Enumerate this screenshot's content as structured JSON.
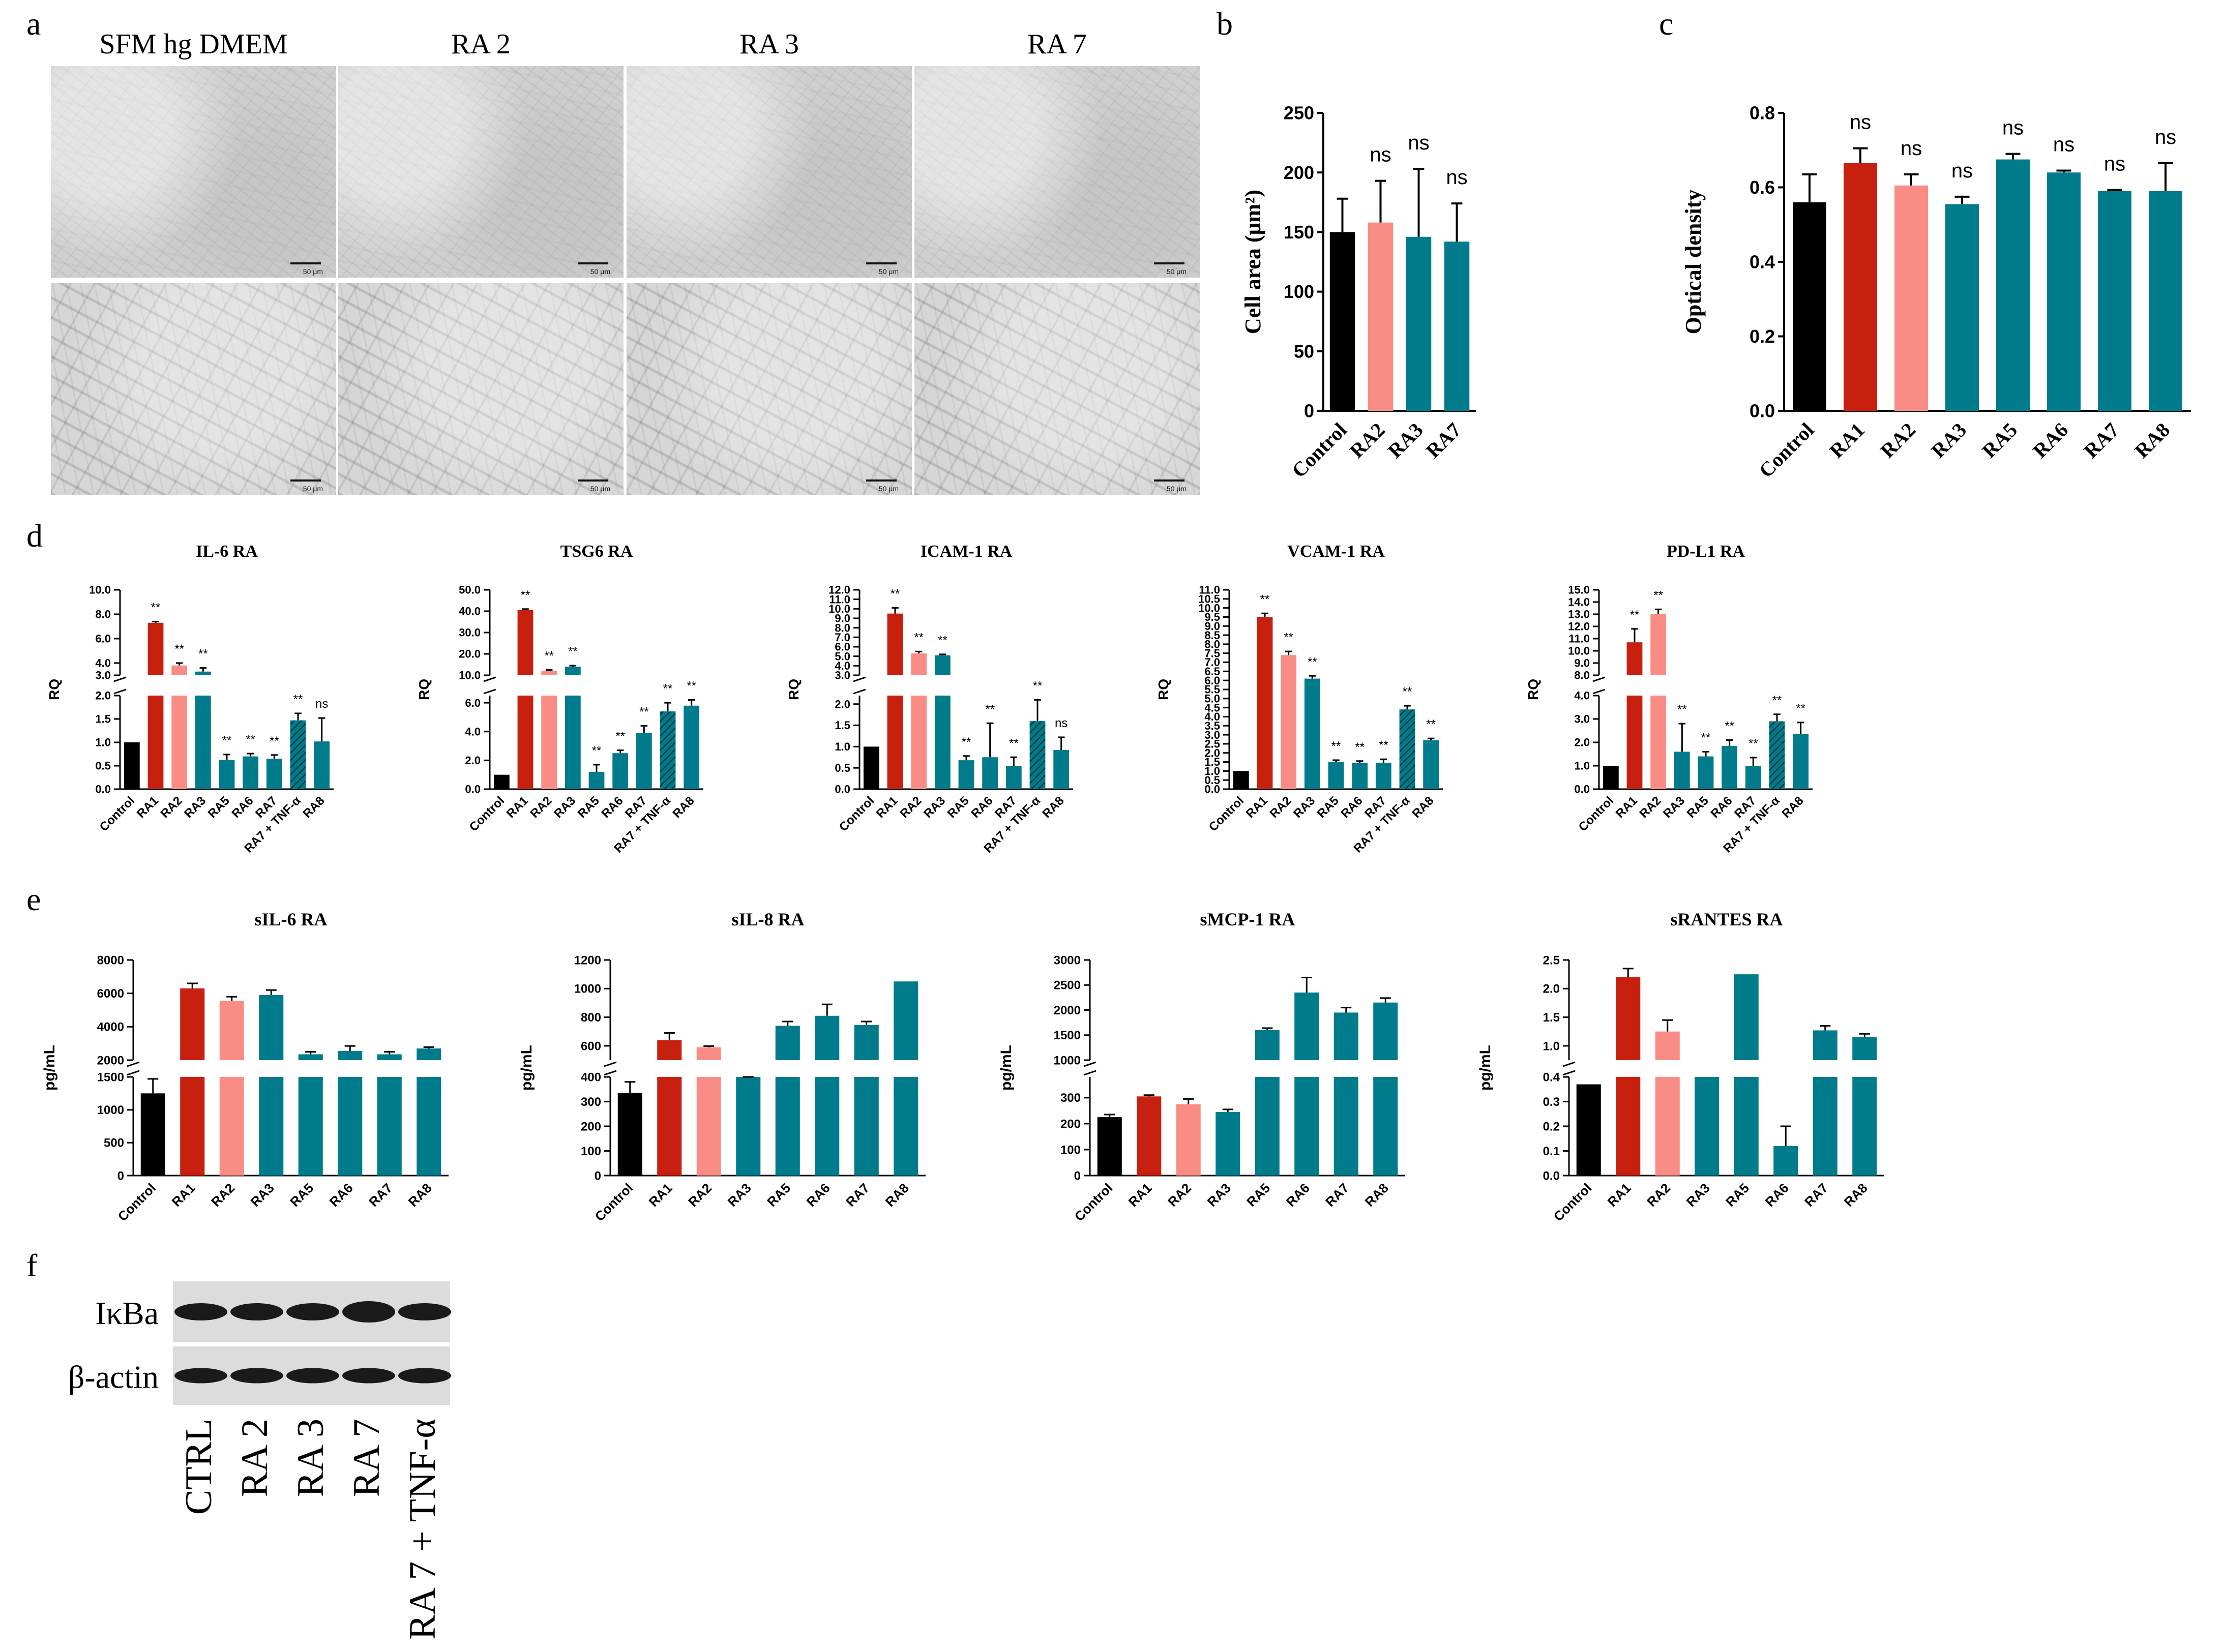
{
  "panel_labels": {
    "a": "a",
    "b": "b",
    "c": "c",
    "d": "d",
    "e": "e",
    "f": "f"
  },
  "colors": {
    "black": "#000000",
    "red": "#c8200e",
    "pink": "#f98d86",
    "teal": "#007b8b"
  },
  "micro": {
    "columns": [
      "SFM hg DMEM",
      "RA 2",
      "RA 3",
      "RA 7"
    ],
    "scalebar": "50 μm"
  },
  "chart_data": [
    {
      "id": "b",
      "type": "bar",
      "ylabel": "Cell area (μm²)",
      "ylim": [
        0,
        250
      ],
      "yticks": [
        0,
        50,
        100,
        150,
        200,
        250
      ],
      "categories": [
        "Control",
        "RA2",
        "RA3",
        "RA7"
      ],
      "values": [
        150,
        158,
        146,
        142
      ],
      "errors": [
        28,
        35,
        57,
        32
      ],
      "colors": [
        "black",
        "pink",
        "teal",
        "teal"
      ],
      "annotations": [
        "",
        "ns",
        "ns",
        "ns"
      ]
    },
    {
      "id": "c",
      "type": "bar",
      "ylabel": "Optical density",
      "ylim": [
        0,
        0.8
      ],
      "yticks": [
        "0.0",
        "0.2",
        "0.4",
        "0.6",
        "0.8"
      ],
      "categories": [
        "Control",
        "RA1",
        "RA2",
        "RA3",
        "RA5",
        "RA6",
        "RA7",
        "RA8"
      ],
      "values": [
        0.56,
        0.665,
        0.605,
        0.555,
        0.675,
        0.64,
        0.59,
        0.59
      ],
      "errors": [
        0.075,
        0.04,
        0.03,
        0.02,
        0.015,
        0.005,
        0.003,
        0.075
      ],
      "colors": [
        "black",
        "red",
        "pink",
        "teal",
        "teal",
        "teal",
        "teal",
        "teal"
      ],
      "annotations": [
        "",
        "ns",
        "ns",
        "ns",
        "ns",
        "ns",
        "ns",
        "ns"
      ]
    },
    {
      "id": "d1",
      "type": "bar",
      "title": "IL-6 RA",
      "ylabel": "RQ",
      "categories": [
        "Control",
        "RA1",
        "RA2",
        "RA3",
        "RA5",
        "RA6",
        "RA7",
        "RA7 + TNF-α",
        "RA8"
      ],
      "values": [
        1.0,
        7.3,
        3.8,
        3.3,
        0.62,
        0.7,
        0.65,
        1.47,
        1.02
      ],
      "errors": [
        0,
        0.1,
        0.2,
        0.3,
        0.12,
        0.06,
        0.08,
        0.15,
        0.5
      ],
      "colors": [
        "black",
        "red",
        "pink",
        "teal",
        "teal",
        "teal",
        "teal",
        "hatch",
        "teal"
      ],
      "annotations": [
        "",
        "**",
        "**",
        "**",
        "**",
        "**",
        "**",
        "**",
        "ns"
      ],
      "lower_ticks": [
        "0.0",
        "0.5",
        "1.0",
        "1.5",
        "2.0"
      ],
      "upper_ticks": [
        "3.0",
        "4.0",
        "6.0",
        "8.0",
        "10.0"
      ],
      "lower_max": 2.0,
      "upper_min": 3.0,
      "upper_max": 10.0
    },
    {
      "id": "d2",
      "type": "bar",
      "title": "TSG6 RA",
      "ylabel": "RQ",
      "categories": [
        "Control",
        "RA1",
        "RA2",
        "RA3",
        "RA5",
        "RA6",
        "RA7",
        "RA7 + TNF-α",
        "RA8"
      ],
      "values": [
        1.0,
        40.5,
        12.0,
        14.0,
        1.2,
        2.5,
        3.9,
        5.4,
        5.8
      ],
      "errors": [
        0,
        0.5,
        0.5,
        0.5,
        0.5,
        0.2,
        0.5,
        0.6,
        0.4
      ],
      "colors": [
        "black",
        "red",
        "pink",
        "teal",
        "teal",
        "teal",
        "teal",
        "hatch",
        "teal"
      ],
      "annotations": [
        "",
        "**",
        "**",
        "**",
        "**",
        "**",
        "**",
        "**",
        "**"
      ],
      "lower_ticks": [
        "0.0",
        "2.0",
        "4.0",
        "6.0"
      ],
      "upper_ticks": [
        "10.0",
        "20.0",
        "30.0",
        "40.0",
        "50.0"
      ],
      "lower_max": 6.5,
      "upper_min": 10.0,
      "upper_max": 50.0
    },
    {
      "id": "d3",
      "type": "bar",
      "title": "ICAM-1 RA",
      "ylabel": "RQ",
      "categories": [
        "Control",
        "RA1",
        "RA2",
        "RA3",
        "RA5",
        "RA6",
        "RA7",
        "RA7 + TNF-α",
        "RA8"
      ],
      "values": [
        1.0,
        9.5,
        5.3,
        5.1,
        0.68,
        0.75,
        0.55,
        1.6,
        0.92
      ],
      "errors": [
        0,
        0.6,
        0.2,
        0.1,
        0.1,
        0.8,
        0.2,
        0.5,
        0.3
      ],
      "colors": [
        "black",
        "red",
        "pink",
        "teal",
        "teal",
        "teal",
        "teal",
        "hatch",
        "teal"
      ],
      "annotations": [
        "",
        "**",
        "**",
        "**",
        "**",
        "**",
        "**",
        "**",
        "ns"
      ],
      "lower_ticks": [
        "0.0",
        "0.5",
        "1.0",
        "1.5",
        "2.0"
      ],
      "upper_ticks": [
        "3.0",
        "4.0",
        "5.0",
        "6.0",
        "7.0",
        "8.0",
        "9.0",
        "10.0",
        "11.0",
        "12.0"
      ],
      "lower_max": 2.2,
      "upper_min": 3.0,
      "upper_max": 12.0
    },
    {
      "id": "d4",
      "type": "bar",
      "title": "VCAM-1 RA",
      "ylabel": "RQ",
      "categories": [
        "Control",
        "RA1",
        "RA2",
        "RA3",
        "RA5",
        "RA6",
        "RA7",
        "RA7 + TNF-α",
        "RA8"
      ],
      "values": [
        1.0,
        9.5,
        7.4,
        6.1,
        1.5,
        1.45,
        1.45,
        4.4,
        2.7
      ],
      "errors": [
        0,
        0.2,
        0.2,
        0.15,
        0.1,
        0.1,
        0.2,
        0.2,
        0.1
      ],
      "colors": [
        "black",
        "red",
        "pink",
        "teal",
        "teal",
        "teal",
        "teal",
        "hatch",
        "teal"
      ],
      "annotations": [
        "",
        "**",
        "**",
        "**",
        "**",
        "**",
        "**",
        "**",
        "**"
      ],
      "ticks": [
        "0.0",
        "0.5",
        "1.0",
        "1.5",
        "2.0",
        "2.5",
        "3.0",
        "3.5",
        "4.0",
        "4.5",
        "5.0",
        "5.5",
        "6.0",
        "6.5",
        "7.0",
        "7.5",
        "8.0",
        "8.5",
        "9.0",
        "9.5",
        "10.0",
        "10.5",
        "11.0"
      ],
      "ymax": 11.0
    },
    {
      "id": "d5",
      "type": "bar",
      "title": "PD-L1 RA",
      "ylabel": "RQ",
      "categories": [
        "Control",
        "RA1",
        "RA2",
        "RA3",
        "RA5",
        "RA6",
        "RA7",
        "RA7 + TNF-α",
        "RA8"
      ],
      "values": [
        1.0,
        10.7,
        13.0,
        1.6,
        1.4,
        1.85,
        1.0,
        2.9,
        2.35
      ],
      "errors": [
        0,
        1.1,
        0.4,
        1.2,
        0.2,
        0.25,
        0.35,
        0.3,
        0.5
      ],
      "colors": [
        "black",
        "red",
        "pink",
        "teal",
        "teal",
        "teal",
        "teal",
        "hatch",
        "teal"
      ],
      "annotations": [
        "",
        "**",
        "**",
        "**",
        "**",
        "**",
        "**",
        "**",
        "**"
      ],
      "lower_ticks": [
        "0.0",
        "1.0",
        "2.0",
        "3.0",
        "4.0"
      ],
      "upper_ticks": [
        "8.0",
        "9.0",
        "10.0",
        "11.0",
        "12.0",
        "13.0",
        "14.0",
        "15.0"
      ],
      "lower_max": 4.0,
      "upper_min": 8.0,
      "upper_max": 15.0
    },
    {
      "id": "e1",
      "type": "bar",
      "title": "sIL-6 RA",
      "ylabel": "pg/mL",
      "categories": [
        "Control",
        "RA1",
        "RA2",
        "RA3",
        "RA5",
        "RA6",
        "RA7",
        "RA8"
      ],
      "values": [
        1250,
        6300,
        5550,
        5900,
        2350,
        2550,
        2350,
        2700
      ],
      "errors": [
        220,
        300,
        250,
        300,
        150,
        300,
        150,
        80
      ],
      "colors": [
        "black",
        "red",
        "pink",
        "teal",
        "teal",
        "teal",
        "teal",
        "teal"
      ],
      "lower_ticks": [
        "0",
        "500",
        "1000",
        "1500"
      ],
      "upper_ticks": [
        "2000",
        "4000",
        "6000",
        "8000"
      ],
      "lower_max": 1500,
      "upper_min": 2000,
      "upper_max": 8000
    },
    {
      "id": "e2",
      "type": "bar",
      "title": "sIL-8 RA",
      "ylabel": "pg/mL",
      "categories": [
        "Control",
        "RA1",
        "RA2",
        "RA3",
        "RA5",
        "RA6",
        "RA7",
        "RA8"
      ],
      "values": [
        335,
        640,
        590,
        480,
        740,
        810,
        745,
        1050
      ],
      "errors": [
        45,
        50,
        8,
        8,
        30,
        80,
        25,
        0
      ],
      "colors": [
        "black",
        "red",
        "pink",
        "teal",
        "teal",
        "teal",
        "teal",
        "teal"
      ],
      "lower_ticks": [
        "0",
        "100",
        "200",
        "300",
        "400"
      ],
      "upper_ticks": [
        "600",
        "800",
        "1000",
        "1200"
      ],
      "lower_max": 400,
      "upper_min": 500,
      "upper_max": 1200
    },
    {
      "id": "e3",
      "type": "bar",
      "title": "sMCP-1 RA",
      "ylabel": "pg/mL",
      "categories": [
        "Control",
        "RA1",
        "RA2",
        "RA3",
        "RA5",
        "RA6",
        "RA7",
        "RA8"
      ],
      "values": [
        225,
        305,
        275,
        245,
        1600,
        2350,
        1950,
        2150
      ],
      "errors": [
        10,
        5,
        20,
        10,
        40,
        300,
        100,
        90
      ],
      "colors": [
        "black",
        "red",
        "pink",
        "teal",
        "teal",
        "teal",
        "teal",
        "teal"
      ],
      "lower_ticks": [
        "0",
        "100",
        "200",
        "300"
      ],
      "upper_ticks": [
        "1000",
        "1500",
        "2000",
        "2500",
        "3000"
      ],
      "lower_max": 380,
      "upper_min": 1000,
      "upper_max": 3000
    },
    {
      "id": "e4",
      "type": "bar",
      "title": "sRANTES RA",
      "ylabel": "pg/mL",
      "categories": [
        "Control",
        "RA1",
        "RA2",
        "RA3",
        "RA5",
        "RA6",
        "RA7",
        "RA8"
      ],
      "values": [
        0.37,
        2.2,
        1.25,
        0.75,
        2.25,
        0.12,
        1.27,
        1.15
      ],
      "errors": [
        0,
        0.15,
        0.2,
        0,
        0,
        0.08,
        0.08,
        0.06
      ],
      "colors": [
        "black",
        "red",
        "pink",
        "teal",
        "teal",
        "teal",
        "teal",
        "teal"
      ],
      "lower_ticks": [
        "0.0",
        "0.1",
        "0.2",
        "0.3",
        "0.4"
      ],
      "upper_ticks": [
        "1.0",
        "1.5",
        "2.0",
        "2.5"
      ],
      "lower_max": 0.4,
      "upper_min": 0.75,
      "upper_max": 2.5
    }
  ],
  "western": {
    "rows": [
      "IκBa",
      "β-actin"
    ],
    "lanes": [
      "CTRL",
      "RA 2",
      "RA 3",
      "RA 7",
      "RA 7 + TNF-α"
    ]
  }
}
